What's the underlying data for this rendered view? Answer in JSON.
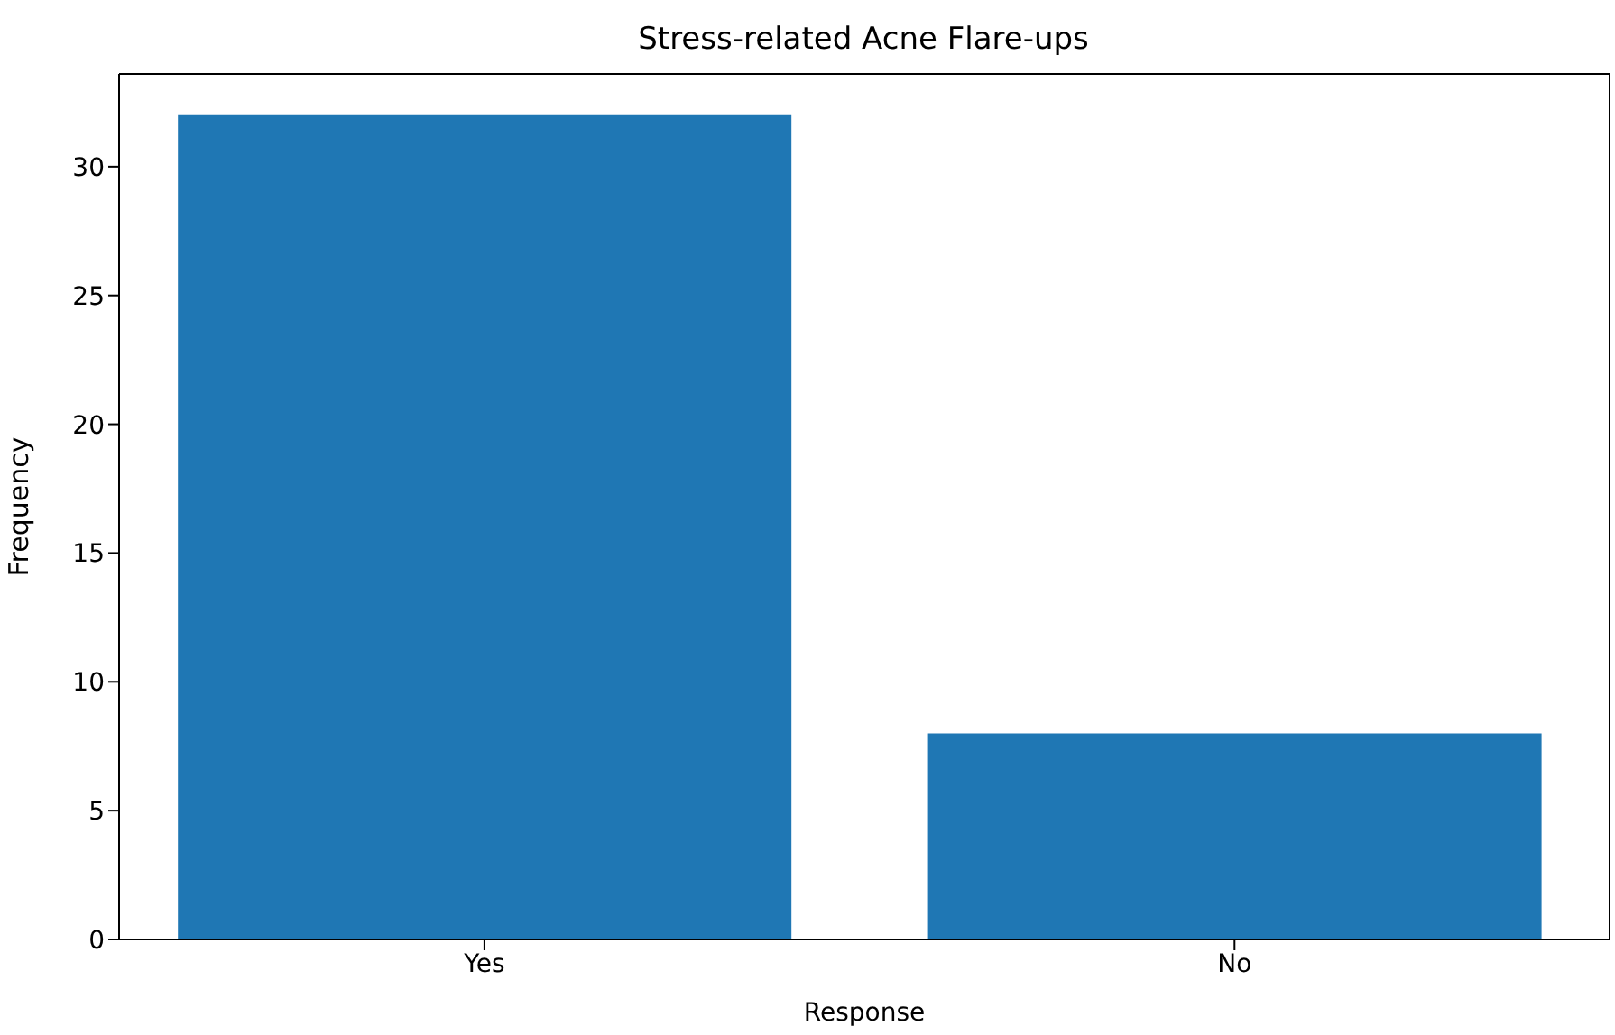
{
  "chart_data": {
    "type": "bar",
    "title": "Stress-related Acne Flare-ups",
    "xlabel": "Response",
    "ylabel": "Frequency",
    "categories": [
      "Yes",
      "No"
    ],
    "values": [
      32,
      8
    ],
    "color": "#1f77b4",
    "ylim": [
      0,
      33.6
    ],
    "yticks": [
      0,
      5,
      10,
      15,
      20,
      25,
      30
    ],
    "grid": false,
    "legend": false
  }
}
